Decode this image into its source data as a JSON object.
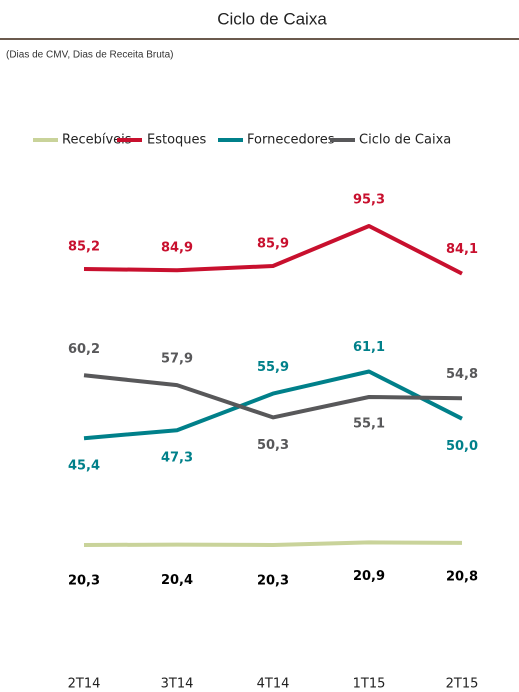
{
  "chart_data": {
    "type": "line",
    "title": "Ciclo de Caixa",
    "subtitle": "(Dias de CMV, Dias de Receita Bruta)",
    "categories": [
      "2T14",
      "3T14",
      "4T14",
      "1T15",
      "2T15"
    ],
    "series": [
      {
        "name": "Recebíveis",
        "color": "#c9d39a",
        "values": [
          20.3,
          20.4,
          20.3,
          20.9,
          20.8
        ],
        "value_labels": [
          "20,3",
          "20,4",
          "20,3",
          "20,9",
          "20,8"
        ]
      },
      {
        "name": "Estoques",
        "color": "#c8102e",
        "values": [
          85.2,
          84.9,
          85.9,
          95.3,
          84.1
        ],
        "value_labels": [
          "85,2",
          "84,9",
          "85,9",
          "95,3",
          "84,1"
        ]
      },
      {
        "name": "Fornecedores",
        "color": "#00808a",
        "values": [
          45.4,
          47.3,
          55.9,
          61.1,
          50.0
        ],
        "value_labels": [
          "45,4",
          "47,3",
          "55,9",
          "61,1",
          "50,0"
        ]
      },
      {
        "name": "Ciclo de Caixa",
        "color": "#58585a",
        "values": [
          60.2,
          57.9,
          50.3,
          55.1,
          54.8
        ],
        "value_labels": [
          "60,2",
          "57,9",
          "50,3",
          "55,1",
          "54,8"
        ]
      }
    ],
    "legend": "top"
  }
}
